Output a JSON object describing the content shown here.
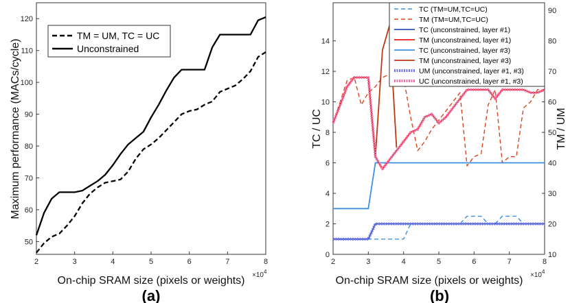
{
  "chart_data": [
    {
      "type": "line",
      "panel_label": "(a)",
      "xlabel": "On-chip SRAM size (pixels or weights)",
      "x_exponent": "×10",
      "x_exponent_power": "4",
      "ylabel": "Maximum performance (MACs/cycle)",
      "xlim": [
        2,
        8
      ],
      "ylim": [
        46,
        125
      ],
      "xticks": [
        2,
        3,
        4,
        5,
        6,
        7,
        8
      ],
      "yticks": [
        50,
        60,
        70,
        80,
        90,
        100,
        110,
        120
      ],
      "legend": [
        "TM = UM, TC = UC",
        "Unconstrained"
      ],
      "series": [
        {
          "name": "TM = UM, TC = UC",
          "style": "dashed",
          "x": [
            2,
            2.2,
            2.4,
            2.6,
            2.8,
            3.0,
            3.2,
            3.4,
            3.6,
            3.8,
            4.0,
            4.2,
            4.4,
            4.6,
            4.8,
            5.0,
            5.2,
            5.4,
            5.6,
            5.8,
            6.0,
            6.2,
            6.4,
            6.6,
            6.8,
            7.0,
            7.2,
            7.4,
            7.6,
            7.8,
            8.0
          ],
          "values": [
            46.5,
            49.5,
            51.5,
            52.5,
            55,
            58,
            62,
            65,
            67,
            68.5,
            69,
            69.5,
            72,
            76,
            79,
            80.5,
            82.5,
            85,
            87.5,
            90,
            91,
            91.5,
            93,
            94,
            97,
            98,
            99,
            101,
            103.5,
            108,
            109.5
          ]
        },
        {
          "name": "Unconstrained",
          "style": "solid",
          "x": [
            2,
            2.2,
            2.4,
            2.6,
            2.8,
            3.0,
            3.2,
            3.4,
            3.6,
            3.8,
            4.0,
            4.2,
            4.4,
            4.6,
            4.8,
            5.0,
            5.2,
            5.4,
            5.6,
            5.8,
            6.0,
            6.2,
            6.4,
            6.6,
            6.8,
            7.0,
            7.2,
            7.4,
            7.6,
            7.8,
            8.0
          ],
          "values": [
            52,
            59,
            63.5,
            65.5,
            65.5,
            65.5,
            66,
            67.5,
            69,
            71,
            74,
            77.5,
            80.5,
            82.5,
            84.5,
            89,
            93,
            97.5,
            101.5,
            104,
            104,
            104,
            104,
            111,
            115,
            115,
            115,
            115,
            115,
            119.5,
            120.5
          ]
        }
      ]
    },
    {
      "type": "line",
      "panel_label": "(b)",
      "xlabel": "On-chip SRAM size (pixels or weights)",
      "x_exponent": "×10",
      "x_exponent_power": "4",
      "ylabel": "TC / UC",
      "ylabel_right": "TM / UM",
      "xlim": [
        2,
        8
      ],
      "ylim": [
        0,
        16.5
      ],
      "ylim_right": [
        10,
        92.5
      ],
      "xticks": [
        2,
        3,
        4,
        5,
        6,
        7,
        8
      ],
      "yticks": [
        0,
        2,
        4,
        6,
        8,
        10,
        12,
        14
      ],
      "yticks_right": [
        10,
        20,
        30,
        40,
        50,
        60,
        70,
        80,
        90
      ],
      "legend": [
        "TC (TM=UM,TC=UC)",
        "TM (TM=UM,TC=UC)",
        "TC (unconstrained, layer #1)",
        "TM (unconstrained, layer #1)",
        "TC (unconstrained, layer #3)",
        "TM (unconstrained, layer #3)",
        "UM (unconstrained, layer #1, #3)",
        "UC (unconstrained, layer #1, #3)"
      ],
      "colors": {
        "tc_dashed": "#3a8ee6",
        "tm_dashed": "#d9441c",
        "tc_layer1": "#2f52b8",
        "tm_layer1": "#e61919",
        "tc_layer3": "#3a8ee6",
        "tm_layer3": "#c0360f",
        "um": "#6b74e8",
        "uc": "#ef6fa5"
      },
      "series": [
        {
          "name": "TC (TM=UM,TC=UC)",
          "axis": "left",
          "style": "dashed",
          "color_key": "tc_dashed",
          "x": [
            2,
            2.5,
            3.0,
            3.2,
            3.6,
            4.0,
            4.2,
            5.0,
            5.6,
            5.8,
            6.0,
            6.1,
            6.2,
            6.4,
            6.6,
            6.8,
            7.0,
            7.2,
            7.4,
            7.6,
            8.0
          ],
          "values": [
            1,
            1,
            1,
            1,
            1,
            1,
            2,
            2,
            2,
            2.5,
            2.5,
            2.5,
            2.5,
            2,
            2,
            2.5,
            2.5,
            2.5,
            2,
            2,
            2
          ]
        },
        {
          "name": "TM (TM=UM,TC=UC)",
          "axis": "right",
          "style": "dashed",
          "color_key": "tm_dashed",
          "x": [
            2,
            2.2,
            2.4,
            2.6,
            2.8,
            3.0,
            3.2,
            3.4,
            3.6,
            3.8,
            4.0,
            4.2,
            4.4,
            4.6,
            4.8,
            5.0,
            5.2,
            5.4,
            5.6,
            5.8,
            6.0,
            6.2,
            6.4,
            6.6,
            6.8,
            7.0,
            7.2,
            7.4,
            7.6,
            7.8,
            8.0
          ],
          "values": [
            53,
            60,
            67,
            68,
            59,
            63,
            65,
            68,
            69,
            69,
            68,
            55,
            44,
            47,
            51,
            54,
            57,
            60,
            63,
            39,
            42,
            43,
            59,
            64,
            40,
            42,
            42,
            58,
            60,
            64,
            64
          ]
        },
        {
          "name": "TC (unconstrained, layer #1)",
          "axis": "left",
          "style": "solid",
          "color_key": "tc_layer1",
          "x": [
            2,
            2.8,
            3.0,
            3.2,
            3.6,
            4.0,
            4.4,
            5.0,
            6.0,
            7.0,
            8.0
          ],
          "values": [
            1,
            1,
            1,
            2,
            2,
            2,
            2,
            2,
            2,
            2,
            2
          ]
        },
        {
          "name": "TM (unconstrained, layer #1)",
          "axis": "right",
          "style": "solid",
          "color_key": "tm_layer1",
          "x": [
            2,
            2.2,
            2.4,
            2.6,
            2.8,
            3.0,
            3.2,
            3.4,
            3.6,
            3.8,
            4.0,
            4.2,
            4.4,
            4.6,
            4.8,
            5.0,
            5.2,
            5.4,
            5.6,
            5.8,
            6.0,
            6.2,
            6.4,
            6.6,
            6.8,
            7.0,
            7.2,
            7.4,
            7.6,
            7.8,
            8.0
          ],
          "values": [
            53,
            59,
            65,
            68,
            68,
            68,
            42,
            38,
            41,
            44,
            47,
            50,
            51,
            55,
            56,
            53,
            55,
            58,
            61,
            64,
            64,
            64,
            64,
            61,
            64,
            64,
            64,
            64,
            63,
            63,
            64
          ]
        },
        {
          "name": "TC (unconstrained, layer #3)",
          "axis": "left",
          "style": "solid",
          "color_key": "tc_layer3",
          "x": [
            2,
            2.5,
            3.0,
            3.2,
            4.0,
            5.0,
            6.0,
            7.0,
            8.0
          ],
          "values": [
            3,
            3,
            3,
            6,
            6,
            6,
            6,
            6,
            6
          ]
        },
        {
          "name": "TM (unconstrained, layer #3)",
          "axis": "right",
          "style": "solid",
          "color_key": "tm_layer3",
          "x": [
            3.0,
            3.2,
            3.4,
            3.6,
            3.8
          ],
          "values": [
            68,
            42,
            77,
            85,
            45
          ]
        },
        {
          "name": "UM (unconstrained, layer #1, #3)",
          "axis": "left",
          "style": "dotted",
          "color_key": "um",
          "x": [
            2,
            2.5,
            3.0,
            3.2,
            3.6,
            4.0,
            5.0,
            6.0,
            7.0,
            8.0
          ],
          "values": [
            1,
            1,
            1,
            2,
            2,
            2,
            2,
            2,
            2,
            2
          ]
        },
        {
          "name": "UC (unconstrained, layer #1, #3)",
          "axis": "right",
          "style": "dotted",
          "color_key": "uc",
          "x": [
            2,
            2.2,
            2.4,
            2.6,
            2.8,
            3.0,
            3.2,
            3.4,
            3.6,
            3.8,
            4.0,
            4.2,
            4.4,
            4.6,
            4.8,
            5.0,
            5.2,
            5.4,
            5.6,
            5.8,
            6.0,
            6.2,
            6.4,
            6.6,
            6.8,
            7.0,
            7.2,
            7.4,
            7.6,
            7.8,
            8.0
          ],
          "values": [
            53,
            59,
            65,
            68,
            68,
            68,
            42,
            38,
            41,
            44,
            47,
            50,
            51,
            55,
            56,
            53,
            55,
            58,
            61,
            64,
            64,
            64,
            64,
            61,
            64,
            64,
            64,
            64,
            63,
            63,
            64
          ]
        }
      ]
    }
  ]
}
